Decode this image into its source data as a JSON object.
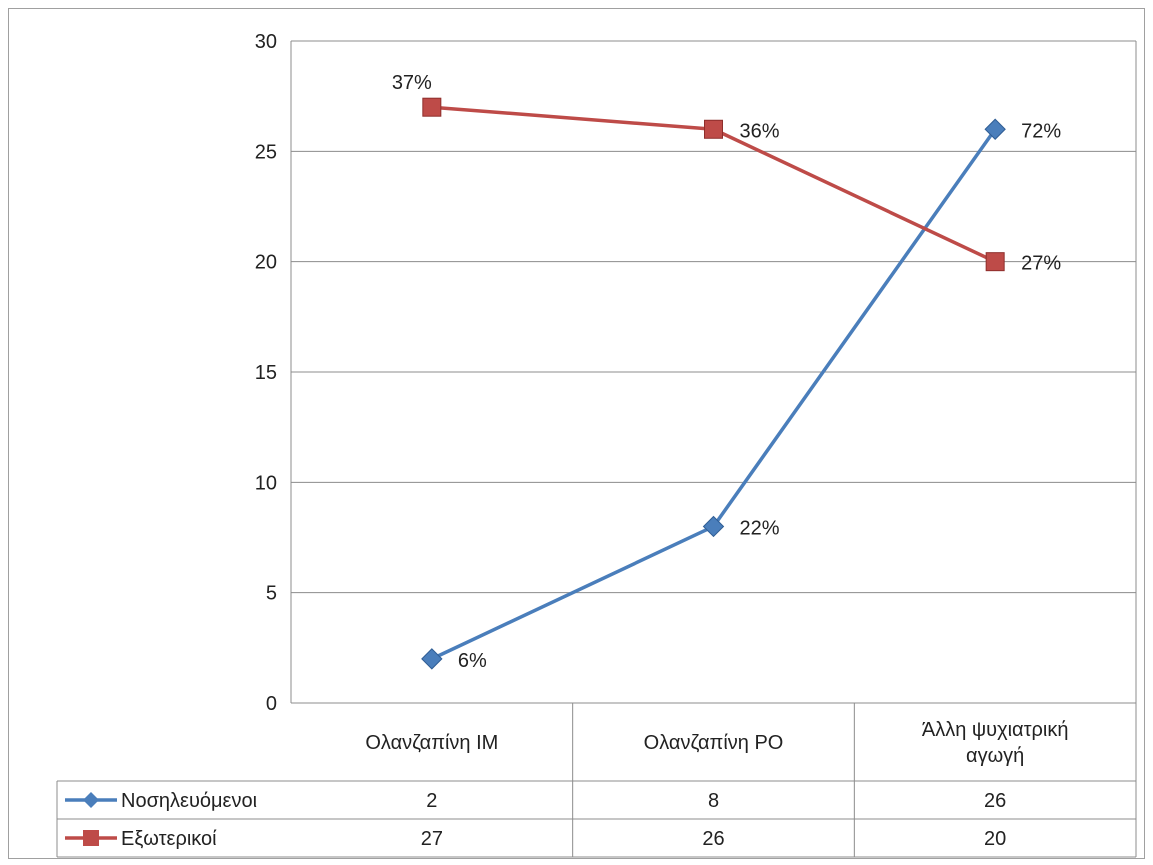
{
  "chart_data": {
    "type": "line",
    "categories": [
      [
        "Ολανζαπίνη IM"
      ],
      [
        "Ολανζαπίνη PO"
      ],
      [
        "Άλλη ψυχιατρική",
        "αγωγή"
      ]
    ],
    "ylim": [
      0,
      30
    ],
    "yticks": [
      0,
      5,
      10,
      15,
      20,
      25,
      30
    ],
    "grid": true,
    "legend": "data-table",
    "series": [
      {
        "name": "Νοσηλευόμενοι",
        "values": [
          2,
          8,
          26
        ],
        "value_labels": [
          "2",
          "8",
          "26"
        ],
        "data_labels": [
          "6%",
          "22%",
          "72%"
        ],
        "color": "#4a7ebb",
        "marker": "diamond"
      },
      {
        "name": "Εξωτερικοί",
        "values": [
          27,
          26,
          20
        ],
        "value_labels": [
          "27",
          "26",
          "20"
        ],
        "data_labels": [
          "37%",
          "36%",
          "27%"
        ],
        "color": "#be4b48",
        "marker": "square"
      }
    ]
  }
}
